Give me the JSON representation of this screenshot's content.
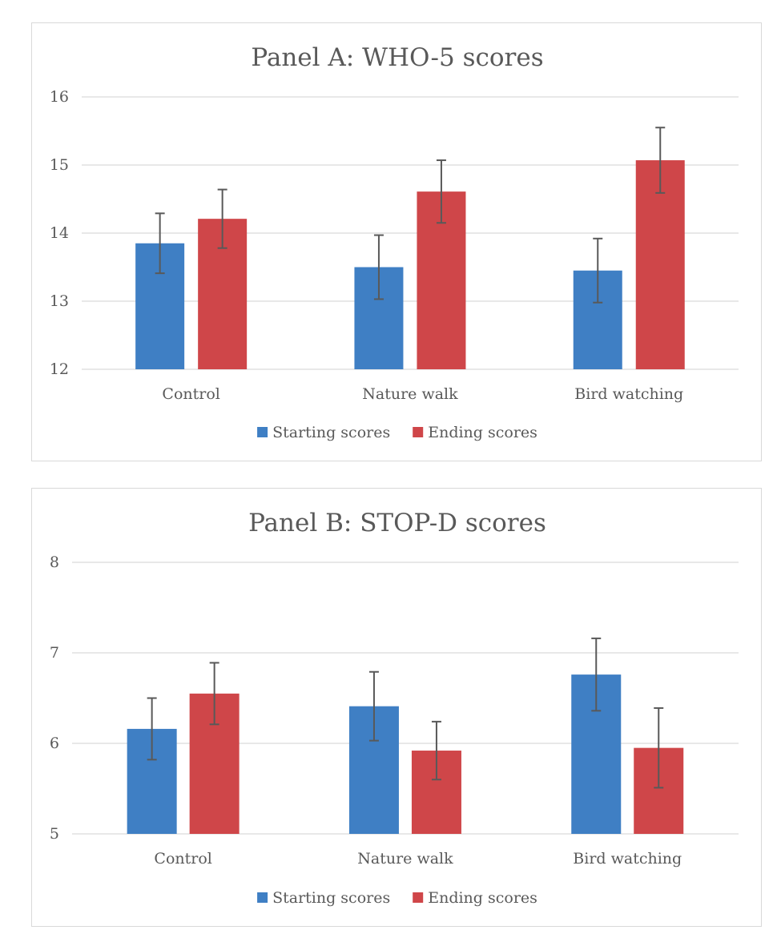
{
  "chart_data": [
    {
      "type": "bar",
      "title": "Panel A: WHO-5 scores",
      "categories": [
        "Control",
        "Nature walk",
        "Bird watching"
      ],
      "ylim": [
        12,
        16
      ],
      "yticks": [
        12,
        13,
        14,
        15,
        16
      ],
      "grid": true,
      "legend_position": "bottom",
      "series": [
        {
          "name": "Starting scores",
          "color": "#3f7fc4",
          "values": [
            13.85,
            13.5,
            13.45
          ],
          "errors": [
            0.44,
            0.47,
            0.47
          ]
        },
        {
          "name": "Ending scores",
          "color": "#cf4649",
          "values": [
            14.21,
            14.61,
            15.07
          ],
          "errors": [
            0.43,
            0.46,
            0.48
          ]
        }
      ]
    },
    {
      "type": "bar",
      "title": "Panel B: STOP-D scores",
      "categories": [
        "Control",
        "Nature walk",
        "Bird watching"
      ],
      "ylim": [
        5,
        8
      ],
      "yticks": [
        5,
        6,
        7,
        8
      ],
      "grid": true,
      "legend_position": "bottom",
      "series": [
        {
          "name": "Starting scores",
          "color": "#3f7fc4",
          "values": [
            6.16,
            6.41,
            6.76
          ],
          "errors": [
            0.34,
            0.38,
            0.4
          ]
        },
        {
          "name": "Ending scores",
          "color": "#cf4649",
          "values": [
            6.55,
            5.92,
            5.95
          ],
          "errors": [
            0.34,
            0.32,
            0.44
          ]
        }
      ]
    }
  ]
}
